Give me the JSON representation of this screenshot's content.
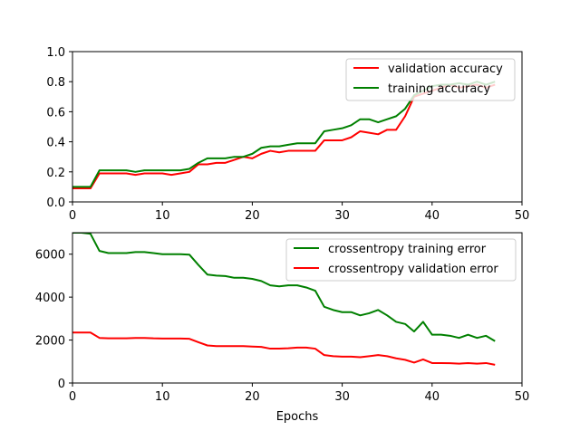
{
  "chart_data": [
    {
      "type": "line",
      "title": "",
      "xlabel": "",
      "ylabel": "",
      "xlim": [
        0,
        50
      ],
      "ylim": [
        0,
        1.0
      ],
      "xticks": [
        0,
        10,
        20,
        30,
        40,
        50
      ],
      "yticks": [
        0.0,
        0.2,
        0.4,
        0.6,
        0.8,
        1.0
      ],
      "xtick_labels": [
        "0",
        "10",
        "20",
        "30",
        "40",
        "50"
      ],
      "ytick_labels": [
        "0.0",
        "0.2",
        "0.4",
        "0.6",
        "0.8",
        "1.0"
      ],
      "grid": false,
      "legend_position": "top-right",
      "x": [
        0,
        1,
        2,
        3,
        4,
        5,
        6,
        7,
        8,
        9,
        10,
        11,
        12,
        13,
        14,
        15,
        16,
        17,
        18,
        19,
        20,
        21,
        22,
        23,
        24,
        25,
        26,
        27,
        28,
        29,
        30,
        31,
        32,
        33,
        34,
        35,
        36,
        37,
        38,
        39,
        40,
        41,
        42,
        43,
        44,
        45,
        46,
        47
      ],
      "series": [
        {
          "name": "validation accuracy",
          "color": "#ff0000",
          "values": [
            0.09,
            0.09,
            0.09,
            0.19,
            0.19,
            0.19,
            0.19,
            0.18,
            0.19,
            0.19,
            0.19,
            0.18,
            0.19,
            0.2,
            0.25,
            0.25,
            0.26,
            0.26,
            0.28,
            0.3,
            0.29,
            0.32,
            0.34,
            0.33,
            0.34,
            0.34,
            0.34,
            0.34,
            0.41,
            0.41,
            0.41,
            0.43,
            0.47,
            0.46,
            0.45,
            0.48,
            0.48,
            0.57,
            0.7,
            0.72,
            0.74,
            0.76,
            0.78,
            0.76,
            0.77,
            0.78,
            0.76,
            0.78
          ]
        },
        {
          "name": "training accuracy",
          "color": "#008000",
          "values": [
            0.1,
            0.1,
            0.1,
            0.21,
            0.21,
            0.21,
            0.21,
            0.2,
            0.21,
            0.21,
            0.21,
            0.21,
            0.21,
            0.22,
            0.26,
            0.29,
            0.29,
            0.29,
            0.3,
            0.3,
            0.32,
            0.36,
            0.37,
            0.37,
            0.38,
            0.39,
            0.39,
            0.39,
            0.47,
            0.48,
            0.49,
            0.51,
            0.55,
            0.55,
            0.53,
            0.55,
            0.57,
            0.62,
            0.71,
            0.74,
            0.77,
            0.78,
            0.78,
            0.79,
            0.78,
            0.8,
            0.78,
            0.8
          ]
        }
      ]
    },
    {
      "type": "line",
      "title": "",
      "xlabel": "Epochs",
      "ylabel": "",
      "xlim": [
        0,
        50
      ],
      "ylim": [
        0,
        7000
      ],
      "xticks": [
        0,
        10,
        20,
        30,
        40,
        50
      ],
      "yticks": [
        0,
        2000,
        4000,
        6000
      ],
      "xtick_labels": [
        "0",
        "10",
        "20",
        "30",
        "40",
        "50"
      ],
      "ytick_labels": [
        "0",
        "2000",
        "4000",
        "6000"
      ],
      "grid": false,
      "legend_position": "top-right",
      "x": [
        0,
        1,
        2,
        3,
        4,
        5,
        6,
        7,
        8,
        9,
        10,
        11,
        12,
        13,
        14,
        15,
        16,
        17,
        18,
        19,
        20,
        21,
        22,
        23,
        24,
        25,
        26,
        27,
        28,
        29,
        30,
        31,
        32,
        33,
        34,
        35,
        36,
        37,
        38,
        39,
        40,
        41,
        42,
        43,
        44,
        45,
        46,
        47
      ],
      "series": [
        {
          "name": "crossentropy training error",
          "color": "#008000",
          "values": [
            7000,
            7000,
            6950,
            6150,
            6050,
            6050,
            6050,
            6100,
            6100,
            6050,
            6000,
            6000,
            6000,
            5980,
            5500,
            5050,
            5000,
            4980,
            4900,
            4900,
            4850,
            4750,
            4550,
            4500,
            4550,
            4550,
            4450,
            4300,
            3550,
            3400,
            3300,
            3300,
            3150,
            3250,
            3400,
            3150,
            2850,
            2750,
            2400,
            2850,
            2250,
            2250,
            2200,
            2100,
            2250,
            2100,
            2200,
            1950
          ]
        },
        {
          "name": "crossentropy validation error",
          "color": "#ff0000",
          "values": [
            2350,
            2350,
            2350,
            2100,
            2080,
            2080,
            2080,
            2100,
            2100,
            2080,
            2070,
            2070,
            2070,
            2060,
            1900,
            1750,
            1720,
            1720,
            1720,
            1720,
            1700,
            1680,
            1600,
            1600,
            1620,
            1650,
            1650,
            1600,
            1300,
            1250,
            1230,
            1230,
            1200,
            1250,
            1300,
            1250,
            1150,
            1080,
            950,
            1100,
            930,
            930,
            920,
            900,
            930,
            900,
            930,
            850
          ]
        }
      ]
    }
  ]
}
